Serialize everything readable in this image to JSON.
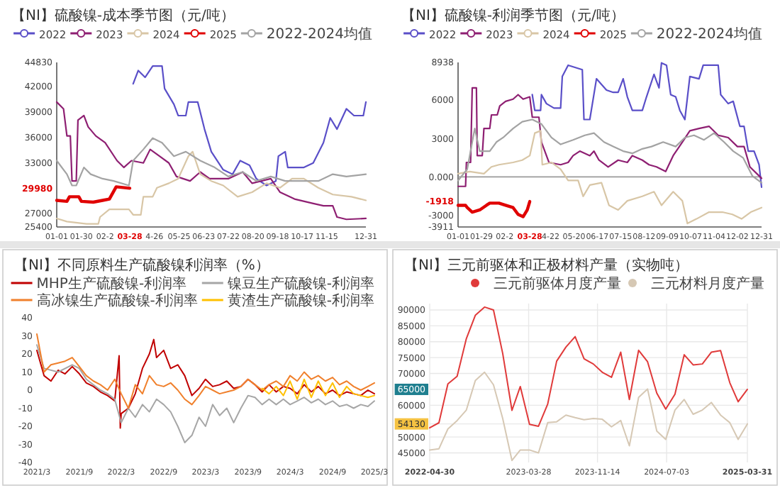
{
  "chart_data": [
    {
      "type": "line",
      "title": "【NI】硫酸镍-成本季节图（元/吨）",
      "legend": "top",
      "xlim": [
        "--01-01",
        "--12-31"
      ],
      "xticks": [
        {
          "value": "--01-01",
          "label": "01-01"
        },
        {
          "value": "--01-30",
          "label": "01-30"
        },
        {
          "value": "--02-27",
          "label": "02-2"
        },
        {
          "value": "--03-28",
          "label": "03-28"
        },
        {
          "value": "--04-26",
          "label": "4-26"
        },
        {
          "value": "--05-25",
          "label": "05-25"
        },
        {
          "value": "--06-23",
          "label": "06-23"
        },
        {
          "value": "--07-22",
          "label": "07-22"
        },
        {
          "value": "--08-20",
          "label": "08-20"
        },
        {
          "value": "--09-18",
          "label": "09-18"
        },
        {
          "value": "--10-17",
          "label": "10-17"
        },
        {
          "value": "--11-15",
          "label": "11-15"
        },
        {
          "value": "--12-31",
          "label": "12-31"
        }
      ],
      "ylim": [
        25400,
        44830
      ],
      "yticks": [
        25400,
        27000,
        29980,
        33000,
        36000,
        39000,
        42000,
        44830
      ],
      "series": [
        {
          "name": "2022",
          "color": "#5a4fc8",
          "x": [
            "--04-01",
            "--04-07",
            "--04-15",
            "--04-24",
            "--05-05",
            "--05-08",
            "--05-19",
            "--05-24",
            "--06-02",
            "--06-05",
            "--06-16",
            "--06-24",
            "--07-02",
            "--07-16",
            "--07-27",
            "--08-05",
            "--08-16",
            "--08-24",
            "--09-05",
            "--09-16",
            "--09-19",
            "--09-27",
            "--09-30",
            "--10-19",
            "--10-30",
            "--11-11",
            "--11-19",
            "--11-27",
            "--12-08",
            "--12-17",
            "--12-28",
            "--12-31"
          ],
          "values": [
            42300,
            43870,
            43070,
            44400,
            44400,
            41740,
            39880,
            38550,
            38550,
            40150,
            40150,
            36950,
            34290,
            32160,
            31630,
            33230,
            32690,
            31100,
            30300,
            30830,
            33760,
            34290,
            32430,
            32430,
            32960,
            35350,
            38280,
            36950,
            39350,
            38550,
            38550,
            40150
          ]
        },
        {
          "name": "2023",
          "color": "#8e1f72",
          "x": [
            "--01-01",
            "--01-09",
            "--01-13",
            "--01-17",
            "--01-19",
            "--01-24",
            "--01-26",
            "--02-02",
            "--02-07",
            "--02-16",
            "--02-27",
            "--03-13",
            "--03-21",
            "--03-30",
            "--04-13",
            "--04-21",
            "--05-02",
            "--05-13",
            "--05-22",
            "--06-07",
            "--06-19",
            "--06-30",
            "--07-22",
            "--08-08",
            "--08-19",
            "--09-10",
            "--09-21",
            "--10-08",
            "--10-30",
            "--11-11",
            "--11-22",
            "--11-27",
            "--12-08",
            "--12-31"
          ],
          "values": [
            40150,
            39350,
            36150,
            36150,
            30830,
            30830,
            38020,
            38550,
            37220,
            36150,
            35350,
            33230,
            32430,
            33230,
            32960,
            34560,
            33760,
            32960,
            31360,
            30830,
            31890,
            31100,
            31100,
            31890,
            30560,
            31100,
            29500,
            28700,
            28170,
            27900,
            27900,
            26570,
            26300,
            26410
          ]
        },
        {
          "name": "2024",
          "color": "#d8c6a6",
          "x": [
            "--01-01",
            "--01-13",
            "--02-05",
            "--02-19",
            "--02-21",
            "--03-04",
            "--03-27",
            "--04-01",
            "--04-10",
            "--04-13",
            "--04-24",
            "--04-29",
            "--05-13",
            "--05-24",
            "--06-05",
            "--06-10",
            "--06-19",
            "--07-02",
            "--07-16",
            "--08-02",
            "--08-19",
            "--09-05",
            "--09-21",
            "--10-05",
            "--10-19",
            "--11-05",
            "--11-22",
            "--12-14",
            "--12-31"
          ],
          "values": [
            26410,
            26040,
            25770,
            25770,
            26570,
            27480,
            27480,
            26840,
            26840,
            28970,
            28970,
            30030,
            30560,
            31100,
            33760,
            34290,
            31630,
            30830,
            30300,
            28970,
            29500,
            30560,
            30030,
            31100,
            31100,
            30030,
            29230,
            28970,
            28540
          ]
        },
        {
          "name": "2025",
          "color": "#e00000",
          "x": [
            "--01-01",
            "--01-13",
            "--01-16",
            "--01-27",
            "--01-30",
            "--02-13",
            "--02-24",
            "--03-04",
            "--03-12",
            "--03-28"
          ],
          "values": [
            28540,
            28430,
            28970,
            28970,
            28430,
            28330,
            28540,
            28700,
            30140,
            29980
          ]
        },
        {
          "name": "2022-2024均值",
          "color": "#a3a3a3",
          "x": [
            "--01-01",
            "--01-13",
            "--01-19",
            "--01-24",
            "--02-02",
            "--02-10",
            "--02-24",
            "--03-09",
            "--03-27",
            "--04-01",
            "--04-13",
            "--04-24",
            "--05-05",
            "--05-19",
            "--06-02",
            "--06-19",
            "--07-06",
            "--07-22",
            "--08-08",
            "--08-24",
            "--09-10",
            "--09-27",
            "--10-19",
            "--11-05",
            "--11-22",
            "--12-08",
            "--12-31"
          ],
          "values": [
            33230,
            31630,
            30300,
            30300,
            32430,
            31630,
            31100,
            30830,
            30300,
            33230,
            34560,
            35890,
            35350,
            33760,
            34290,
            33230,
            32430,
            31360,
            31890,
            30830,
            31360,
            30830,
            30830,
            30830,
            31630,
            31360,
            31630
          ]
        }
      ]
    },
    {
      "type": "line",
      "title": "【NI】硫酸镍-利润季节图（元/吨）",
      "legend": "top",
      "xlim": [
        "--01-01",
        "--12-31"
      ],
      "xticks": [
        {
          "value": "--01-01",
          "label": "01-01"
        },
        {
          "value": "--01-29",
          "label": "01-29"
        },
        {
          "value": "--02-26",
          "label": "02-2"
        },
        {
          "value": "--03-28",
          "label": "03-28"
        },
        {
          "value": "--04-22",
          "label": "4-22"
        },
        {
          "value": "--05-20",
          "label": "05-20"
        },
        {
          "value": "--06-17",
          "label": "06-17"
        },
        {
          "value": "--07-15",
          "label": "07-15"
        },
        {
          "value": "--08-12",
          "label": "08-12"
        },
        {
          "value": "--09-09",
          "label": "09-09"
        },
        {
          "value": "--10-07",
          "label": "10-07"
        },
        {
          "value": "--11-04",
          "label": "11-04"
        },
        {
          "value": "--12-02",
          "label": "12-02"
        },
        {
          "value": "--12-31",
          "label": "12-31"
        }
      ],
      "ylim": [
        -3911,
        8938
      ],
      "yticks": [
        -3911,
        -3000,
        -1918,
        {
          "value": 0,
          "label": "0.000"
        },
        3000,
        6000,
        8938
      ],
      "ref_lines": [
        {
          "axis": "y",
          "value": 0,
          "color": "#999999"
        }
      ],
      "series": [
        {
          "name": "2022",
          "color": "#5a4fc8",
          "x": [
            "--03-31",
            "--04-03",
            "--04-10",
            "--04-11",
            "--04-17",
            "--04-26",
            "--05-04",
            "--05-06",
            "--05-13",
            "--05-30",
            "--06-01",
            "--06-08",
            "--06-16",
            "--06-28",
            "--07-06",
            "--07-12",
            "--07-18",
            "--07-23",
            "--07-29",
            "--08-10",
            "--08-15",
            "--08-24",
            "--08-30",
            "--09-02",
            "--09-08",
            "--09-13",
            "--09-19",
            "--09-24",
            "--09-30",
            "--10-06",
            "--10-17",
            "--10-22",
            "--11-09",
            "--11-12",
            "--11-21",
            "--11-27",
            "--12-05",
            "--12-10",
            "--12-15",
            "--12-22",
            "--12-28",
            "--12-31"
          ],
          "values": [
            6420,
            5190,
            5190,
            6420,
            5720,
            5370,
            5370,
            7840,
            8720,
            8370,
            4480,
            4480,
            7660,
            6780,
            6600,
            6600,
            7660,
            6250,
            5190,
            5190,
            6250,
            8010,
            6950,
            8900,
            8720,
            6420,
            6250,
            5190,
            4480,
            7840,
            7660,
            8720,
            8720,
            6420,
            5720,
            5900,
            3950,
            3950,
            2010,
            2010,
            950,
            -810
          ]
        },
        {
          "name": "2023",
          "color": "#8e1f72",
          "x": [
            "--01-01",
            "--01-10",
            "--01-11",
            "--01-16",
            "--01-18",
            "--01-23",
            "--01-24",
            "--01-30",
            "--02-01",
            "--02-08",
            "--02-10",
            "--02-17",
            "--02-20",
            "--02-27",
            "--03-08",
            "--03-14",
            "--03-20",
            "--03-28",
            "--03-31",
            "--04-08",
            "--04-11",
            "--04-20",
            "--05-04",
            "--05-13",
            "--05-19",
            "--05-27",
            "--06-08",
            "--06-13",
            "--06-19",
            "--06-30",
            "--07-12",
            "--07-23",
            "--07-29",
            "--08-10",
            "--08-18",
            "--08-27",
            "--09-07",
            "--09-16",
            "--09-27",
            "--10-06",
            "--10-17",
            "--10-29",
            "--11-09",
            "--11-21",
            "--12-02",
            "--12-10",
            "--12-17",
            "--12-31"
          ],
          "values": [
            -740,
            -740,
            1130,
            1130,
            6950,
            6950,
            1660,
            1660,
            3780,
            3780,
            4840,
            4840,
            5540,
            5900,
            6070,
            6420,
            6070,
            6250,
            4660,
            4660,
            2720,
            1130,
            950,
            1130,
            1660,
            2010,
            1660,
            2010,
            1310,
            780,
            1310,
            1130,
            1660,
            1310,
            950,
            780,
            420,
            1660,
            2720,
            3600,
            3780,
            3950,
            3250,
            3070,
            2370,
            2370,
            780,
            -110
          ]
        },
        {
          "name": "2024",
          "color": "#d8c6a6",
          "x": [
            "--01-01",
            "--01-15",
            "--02-01",
            "--02-10",
            "--02-19",
            "--03-08",
            "--03-19",
            "--03-28",
            "--04-03",
            "--04-10",
            "--04-12",
            "--04-23",
            "--05-04",
            "--05-13",
            "--05-25",
            "--05-31",
            "--06-08",
            "--06-22",
            "--07-01",
            "--07-12",
            "--07-23",
            "--08-10",
            "--08-24",
            "--09-02",
            "--09-16",
            "--09-27",
            "--10-03",
            "--10-14",
            "--10-29",
            "--11-14",
            "--11-26",
            "--12-07",
            "--12-18",
            "--12-31"
          ],
          "values": [
            250,
            420,
            250,
            780,
            950,
            1130,
            1310,
            1660,
            3420,
            3600,
            950,
            1130,
            600,
            -280,
            -280,
            -1520,
            -640,
            -460,
            -2220,
            -2580,
            -1870,
            -1520,
            -1160,
            -2220,
            -1160,
            -1870,
            -3640,
            -3280,
            -2750,
            -2750,
            -2930,
            -3280,
            -2750,
            -2400
          ]
        },
        {
          "name": "2025",
          "color": "#e00000",
          "x": [
            "--01-01",
            "--01-10",
            "--01-12",
            "--01-18",
            "--01-27",
            "--02-04",
            "--02-08",
            "--02-19",
            "--02-27",
            "--03-08",
            "--03-14",
            "--03-20",
            "--03-25",
            "--03-28"
          ],
          "values": [
            -2220,
            -2220,
            -2400,
            -2750,
            -2580,
            -2220,
            -2050,
            -2050,
            -2220,
            -2400,
            -2930,
            -3110,
            -2580,
            -1918
          ]
        },
        {
          "name": "2022-2024均值",
          "color": "#a3a3a3",
          "x": [
            "--01-01",
            "--01-12",
            "--01-21",
            "--01-27",
            "--02-08",
            "--02-16",
            "--02-24",
            "--03-08",
            "--03-19",
            "--03-31",
            "--04-11",
            "--04-23",
            "--05-04",
            "--05-19",
            "--06-02",
            "--06-13",
            "--06-25",
            "--07-06",
            "--07-18",
            "--07-29",
            "--08-10",
            "--08-21",
            "--09-04",
            "--09-19",
            "--09-30",
            "--10-11",
            "--10-23",
            "--11-04",
            "--11-16",
            "--11-27",
            "--12-09",
            "--12-20",
            "--12-31"
          ],
          "values": [
            -280,
            600,
            3780,
            2010,
            2010,
            2720,
            3070,
            3780,
            4310,
            4480,
            4130,
            3070,
            2540,
            2890,
            3250,
            3420,
            2720,
            2370,
            2010,
            1840,
            2190,
            2370,
            2720,
            2370,
            3070,
            3250,
            2890,
            3420,
            2720,
            2010,
            1480,
            70,
            -460
          ]
        }
      ]
    },
    {
      "type": "line",
      "title": "【NI】不同原料生产硫酸镍利润率（%）",
      "legend": "top right",
      "xlim": [
        "2021-03-01",
        "2025-03-01"
      ],
      "xticks": [
        {
          "value": "2021-03-01",
          "label": "2021/3"
        },
        {
          "value": "2021-09-01",
          "label": "2021/9"
        },
        {
          "value": "2022-03-01",
          "label": "2022/3"
        },
        {
          "value": "2022-09-01",
          "label": "2022/9"
        },
        {
          "value": "2023-03-01",
          "label": "2023/3"
        },
        {
          "value": "2023-09-01",
          "label": "2023/9"
        },
        {
          "value": "2024-03-01",
          "label": "2024/3"
        },
        {
          "value": "2024-09-01",
          "label": "2024/9"
        },
        {
          "value": "2025-03-01",
          "label": "2025/3"
        }
      ],
      "ylim": [
        -40,
        40
      ],
      "yticks": [
        -40,
        -30,
        -20,
        -10,
        0,
        10,
        20,
        30,
        40
      ],
      "series": [
        {
          "name": "MHP生产硫酸镍-利润率",
          "color": "#c00000",
          "x": [
            "2021-03-01",
            "2021-04-01",
            "2021-05-01",
            "2021-06-01",
            "2021-07-01",
            "2021-08-01",
            "2021-09-01",
            "2021-10-01",
            "2021-11-01",
            "2021-12-01",
            "2022-01-01",
            "2022-02-01",
            "2022-02-20",
            "2022-02-25",
            "2022-03-01",
            "2022-04-01",
            "2022-05-01",
            "2022-06-01",
            "2022-07-01",
            "2022-07-20",
            "2022-08-01",
            "2022-09-01",
            "2022-10-01",
            "2022-11-01",
            "2022-12-01",
            "2023-01-01",
            "2023-02-01",
            "2023-03-01",
            "2023-04-01",
            "2023-05-01",
            "2023-06-01",
            "2023-07-01",
            "2023-08-01",
            "2023-09-01",
            "2023-10-01",
            "2023-11-01",
            "2023-12-01",
            "2024-01-01",
            "2024-02-01",
            "2024-03-01",
            "2024-04-01",
            "2024-05-01",
            "2024-06-01",
            "2024-07-01",
            "2024-08-01",
            "2024-09-01",
            "2024-10-01",
            "2024-11-01",
            "2024-12-01",
            "2025-01-01",
            "2025-02-01",
            "2025-03-01"
          ],
          "values": [
            22,
            8,
            5,
            11,
            9,
            13,
            9,
            4,
            2,
            -1,
            -3,
            -6,
            19,
            -21,
            -13,
            -10,
            -2,
            12,
            20,
            28,
            18,
            22,
            12,
            14,
            8,
            -3,
            1,
            6,
            2,
            3,
            5,
            1,
            2,
            6,
            3,
            -1,
            3,
            -1,
            2,
            1,
            -2,
            3,
            -1,
            2,
            -2,
            0,
            -3,
            -1,
            -2,
            -3,
            0,
            -2
          ]
        },
        {
          "name": "镍豆生产硫酸镍-利润率",
          "color": "#a6a6a6",
          "x": [
            "2021-03-01",
            "2021-04-01",
            "2021-06-01",
            "2021-08-01",
            "2021-09-01",
            "2021-10-01",
            "2021-12-01",
            "2022-01-01",
            "2022-02-01",
            "2022-03-01",
            "2022-04-01",
            "2022-05-01",
            "2022-06-01",
            "2022-07-01",
            "2022-08-01",
            "2022-09-01",
            "2022-10-01",
            "2022-11-01",
            "2022-12-01",
            "2023-01-01",
            "2023-02-01",
            "2023-03-01",
            "2023-04-01",
            "2023-05-01",
            "2023-06-01",
            "2023-07-01",
            "2023-08-01",
            "2023-09-01",
            "2023-10-01",
            "2023-11-01",
            "2023-12-01",
            "2024-01-01",
            "2024-02-01",
            "2024-03-01",
            "2024-04-01",
            "2024-05-01",
            "2024-06-01",
            "2024-07-01",
            "2024-08-01",
            "2024-09-01",
            "2024-10-01",
            "2024-11-01",
            "2024-12-01",
            "2025-01-01",
            "2025-02-01",
            "2025-03-01"
          ],
          "values": [
            25,
            12,
            10,
            14,
            12,
            6,
            0,
            -2,
            -5,
            -18,
            -10,
            -15,
            -8,
            -12,
            -5,
            -8,
            -12,
            -20,
            -29,
            -25,
            -15,
            -20,
            -8,
            -14,
            -10,
            -18,
            -10,
            -3,
            -4,
            -8,
            -5,
            -8,
            -5,
            -8,
            -6,
            -4,
            -7,
            -5,
            -8,
            -6,
            -9,
            -8,
            -10,
            -8,
            -9,
            -6
          ]
        },
        {
          "name": "高冰镍生产硫酸镍-利润率",
          "color": "#f0802c",
          "x": [
            "2021-03-01",
            "2021-04-01",
            "2021-05-01",
            "2021-06-01",
            "2021-07-01",
            "2021-08-01",
            "2021-09-01",
            "2021-10-01",
            "2021-11-01",
            "2021-12-01",
            "2022-01-01",
            "2022-02-01",
            "2022-03-01",
            "2022-04-01",
            "2022-05-01",
            "2022-06-01",
            "2022-07-01",
            "2022-08-01",
            "2022-09-01",
            "2022-10-01",
            "2022-11-01",
            "2022-12-01",
            "2023-01-01",
            "2023-02-01",
            "2023-03-01",
            "2023-04-01",
            "2023-05-01",
            "2023-06-01",
            "2023-07-01",
            "2023-08-01",
            "2023-09-01",
            "2023-10-01",
            "2023-11-01",
            "2023-12-01",
            "2024-01-01",
            "2024-02-01",
            "2024-03-01",
            "2024-04-01",
            "2024-05-01",
            "2024-06-01",
            "2024-07-01",
            "2024-08-01",
            "2024-09-01",
            "2024-10-01",
            "2024-11-01",
            "2024-12-01",
            "2025-01-01",
            "2025-02-01",
            "2025-03-01"
          ],
          "values": [
            31,
            10,
            14,
            15,
            16,
            18,
            13,
            8,
            5,
            3,
            0,
            6,
            -2,
            -10,
            3,
            -2,
            8,
            3,
            2,
            4,
            0,
            -5,
            -8,
            -3,
            2,
            0,
            -2,
            -1,
            0,
            2,
            6,
            3,
            0,
            3,
            5,
            2,
            8,
            5,
            10,
            6,
            8,
            5,
            7,
            3,
            5,
            2,
            0,
            2,
            4
          ]
        },
        {
          "name": "黄渣生产硫酸镍-利润率",
          "color": "#ffc000",
          "x": [
            "2023-11-01",
            "2023-12-01",
            "2024-01-01",
            "2024-02-01",
            "2024-03-01",
            "2024-04-01",
            "2024-05-01",
            "2024-06-01",
            "2024-07-01",
            "2024-08-01",
            "2024-09-01",
            "2024-10-01",
            "2024-11-01",
            "2024-12-01",
            "2025-01-01",
            "2025-02-01",
            "2025-03-01"
          ],
          "values": [
            1,
            -2,
            2,
            -3,
            5,
            -5,
            6,
            -4,
            5,
            -3,
            4,
            -4,
            2,
            -2,
            -3,
            -4,
            -3
          ]
        }
      ]
    },
    {
      "type": "line",
      "title": "【NI】三元前驱体和正极材料产量（实物吨）",
      "legend": "top right",
      "grid": true,
      "xlim": [
        "2022-04-30",
        "2025-03-31"
      ],
      "xticks": [
        "2022-04-30",
        "2023-03-28",
        "2023-11-14",
        "2024-07-03",
        "2025-03-31"
      ],
      "ylim": [
        42000,
        92000
      ],
      "yticks": [
        45000,
        50000,
        54130,
        60000,
        65000,
        70000,
        75000,
        80000,
        85000,
        90000
      ],
      "x": [
        "2022-04-30",
        "2022-05-31",
        "2022-06-30",
        "2022-07-31",
        "2022-08-31",
        "2022-09-30",
        "2022-10-31",
        "2022-11-30",
        "2022-12-31",
        "2023-01-31",
        "2023-02-28",
        "2023-03-31",
        "2023-04-30",
        "2023-05-31",
        "2023-06-30",
        "2023-07-31",
        "2023-08-31",
        "2023-09-30",
        "2023-10-31",
        "2023-11-30",
        "2023-12-31",
        "2024-01-31",
        "2024-02-29",
        "2024-03-31",
        "2024-04-30",
        "2024-05-31",
        "2024-06-30",
        "2024-07-31",
        "2024-08-31",
        "2024-09-30",
        "2024-10-31",
        "2024-11-30",
        "2024-12-31",
        "2025-01-31",
        "2025-02-28",
        "2025-03-31"
      ],
      "series": [
        {
          "name": "三元前驱体月度产量",
          "color": "#e03a3a",
          "values": [
            52900,
            54500,
            66700,
            69100,
            81000,
            88300,
            90900,
            90000,
            76300,
            58400,
            65900,
            54000,
            53400,
            60400,
            73900,
            78300,
            81600,
            74600,
            73000,
            70400,
            68800,
            76700,
            61800,
            77300,
            73700,
            63800,
            58800,
            63500,
            75900,
            72700,
            73000,
            76700,
            77200,
            67100,
            61100,
            65000
          ]
        },
        {
          "name": "三元材料月度产量",
          "color": "#d6c8b4",
          "values": [
            45930,
            46320,
            52540,
            55190,
            58500,
            67760,
            70410,
            66440,
            55850,
            42620,
            45930,
            45930,
            45000,
            54530,
            54800,
            56910,
            56120,
            55460,
            55850,
            55590,
            53210,
            55190,
            47250,
            62470,
            65120,
            51880,
            49240,
            58500,
            61810,
            57180,
            58500,
            60880,
            56910,
            54530,
            49240,
            54130
          ]
        }
      ]
    }
  ]
}
